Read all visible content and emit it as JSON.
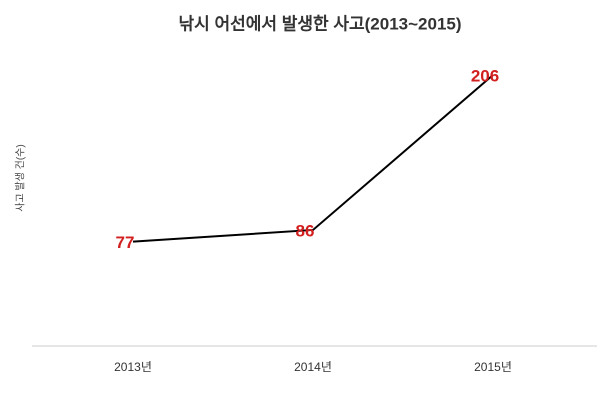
{
  "chart_data": {
    "type": "line",
    "title": "낚시 어선에서 발생한 사고(2013~2015)",
    "y_label": "사고 발생 건(수)",
    "categories": [
      "2013년",
      "2014년",
      "2015년"
    ],
    "values": [
      77,
      86,
      206
    ],
    "color": "#000000",
    "label_color": "#d21f1f",
    "ylim": [
      0,
      230
    ]
  }
}
